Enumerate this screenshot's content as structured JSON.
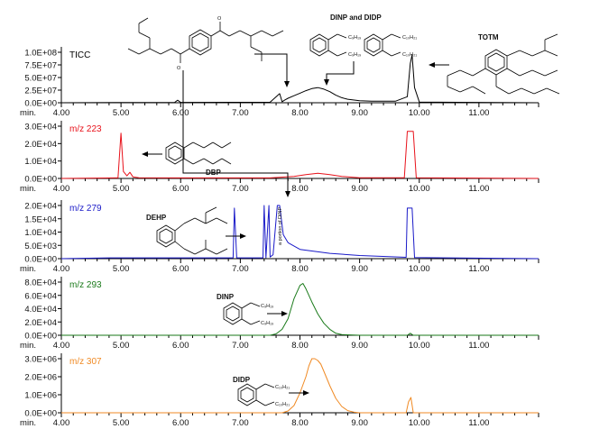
{
  "chart_data": [
    {
      "type": "line",
      "trace": "TICC",
      "label": "TICC",
      "color": "#000000",
      "xlim": [
        4.0,
        12.0
      ],
      "ylim": [
        0,
        100000000
      ],
      "y_ticks": [
        "0.0E+00",
        "2.5E+07",
        "5.0E+07",
        "7.5E+07",
        "1.0E+08"
      ],
      "x_ticks": [
        "4.00",
        "5.00",
        "6.00",
        "7.00",
        "8.00",
        "9.00",
        "10.00",
        "11.00"
      ],
      "x_unit": "min.",
      "x": [
        4.0,
        5.0,
        5.9,
        5.95,
        6.0,
        7.5,
        7.66,
        7.7,
        7.74,
        7.8,
        7.9,
        8.0,
        8.1,
        8.2,
        8.3,
        8.4,
        8.5,
        8.6,
        8.7,
        8.8,
        9.0,
        9.2,
        9.6,
        9.8,
        9.85,
        9.88,
        9.92,
        10.0,
        12.0
      ],
      "y": [
        0,
        500000,
        800000,
        5000000,
        800000,
        1000000,
        18000000,
        2000000,
        5000000,
        9000000,
        14000000,
        19000000,
        24000000,
        28000000,
        30000000,
        27000000,
        22000000,
        15000000,
        10000000,
        7000000,
        4000000,
        3000000,
        3000000,
        12000000,
        78000000,
        95000000,
        30000000,
        1500000,
        0
      ]
    },
    {
      "type": "line",
      "trace": "m/z 223",
      "label": "m/z 223",
      "color": "#e8121b",
      "xlim": [
        4.0,
        12.0
      ],
      "ylim": [
        0,
        30000
      ],
      "y_ticks": [
        "0.0E+00",
        "1.0E+04",
        "2.0E+04",
        "3.0E+04"
      ],
      "x_ticks": [
        "4.00",
        "5.00",
        "6.00",
        "7.00",
        "8.00",
        "9.00",
        "10.00",
        "11.00"
      ],
      "x_unit": "min.",
      "x": [
        4.0,
        4.95,
        5.0,
        5.04,
        5.1,
        5.15,
        5.2,
        5.3,
        6.0,
        7.5,
        7.9,
        8.1,
        8.3,
        8.5,
        8.7,
        9.0,
        9.75,
        9.8,
        9.9,
        9.95,
        12.0
      ],
      "y": [
        0,
        300,
        26000,
        4000,
        1500,
        3500,
        900,
        400,
        300,
        300,
        1200,
        2200,
        3000,
        2200,
        1200,
        400,
        400,
        27000,
        27000,
        400,
        0
      ]
    },
    {
      "type": "line",
      "trace": "m/z 279",
      "label": "m/z 279",
      "color": "#1a1ac8",
      "xlim": [
        4.0,
        12.0
      ],
      "ylim": [
        0,
        20000
      ],
      "y_ticks": [
        "0.0E+00",
        "5.0E+03",
        "1.0E+04",
        "1.5E+04",
        "2.0E+04"
      ],
      "x_ticks": [
        "4.00",
        "5.00",
        "6.00",
        "7.00",
        "8.00",
        "9.00",
        "10.00",
        "11.00"
      ],
      "x_unit": "min.",
      "x": [
        4.0,
        4.8,
        6.88,
        6.9,
        6.94,
        7.38,
        7.4,
        7.43,
        7.48,
        7.5,
        7.55,
        7.62,
        7.66,
        7.72,
        7.8,
        8.0,
        8.5,
        9.0,
        9.78,
        9.8,
        9.88,
        9.92,
        12.0
      ],
      "y": [
        0,
        300,
        300,
        19000,
        300,
        300,
        20000,
        300,
        20000,
        600,
        1500,
        20000,
        20000,
        9000,
        6000,
        3500,
        2000,
        1200,
        500,
        19000,
        19000,
        400,
        0
      ]
    },
    {
      "type": "line",
      "trace": "m/z 293",
      "label": "m/z 293",
      "color": "#1a7a1a",
      "xlim": [
        4.0,
        12.0
      ],
      "ylim": [
        0,
        80000
      ],
      "y_ticks": [
        "0.0E+00",
        "2.0E+04",
        "4.0E+04",
        "6.0E+04",
        "8.0E+04"
      ],
      "x_ticks": [
        "4.00",
        "5.00",
        "6.00",
        "7.00",
        "8.00",
        "9.00",
        "10.00",
        "11.00"
      ],
      "x_unit": "min.",
      "x": [
        4.0,
        7.5,
        7.6,
        7.7,
        7.8,
        7.9,
        8.0,
        8.05,
        8.1,
        8.2,
        8.3,
        8.4,
        8.5,
        8.6,
        8.7,
        9.0,
        9.8,
        9.85,
        9.9,
        12.0
      ],
      "y": [
        0,
        0,
        2000,
        9000,
        25000,
        55000,
        75000,
        78000,
        70000,
        50000,
        32000,
        18000,
        9000,
        3000,
        1000,
        0,
        0,
        3000,
        0,
        0
      ]
    },
    {
      "type": "line",
      "trace": "m/z 307",
      "label": "m/z 307",
      "color": "#f08a24",
      "xlim": [
        4.0,
        12.0
      ],
      "ylim": [
        0,
        3000000
      ],
      "y_ticks": [
        "0.0E+00",
        "1.0E+06",
        "2.0E+06",
        "3.0E+06"
      ],
      "x_ticks": [
        "4.00",
        "5.00",
        "6.00",
        "7.00",
        "8.00",
        "9.00",
        "10.00",
        "11.00"
      ],
      "x_unit": "min.",
      "x": [
        4.0,
        7.7,
        7.8,
        7.9,
        8.0,
        8.1,
        8.15,
        8.2,
        8.25,
        8.3,
        8.35,
        8.4,
        8.5,
        8.6,
        8.7,
        8.8,
        8.9,
        9.0,
        9.78,
        9.82,
        9.86,
        9.9,
        12.0
      ],
      "y": [
        0,
        0,
        100000,
        400000,
        1100000,
        2000000,
        2600000,
        3000000,
        3000000,
        2900000,
        2700000,
        2300000,
        1500000,
        800000,
        350000,
        120000,
        40000,
        0,
        0,
        600000,
        850000,
        0,
        0
      ]
    }
  ],
  "annotations": {
    "dinp_didp": "DINP and DIDP",
    "totm": "TOTM",
    "dbp": "DBP",
    "dehp": "DEHP",
    "dinp": "DINP",
    "didp": "DIDP",
    "dinp_portion": "a portion of DINP",
    "c9h19": "C₉H₁₉",
    "c10h21": "C₁₀H₂₁"
  }
}
